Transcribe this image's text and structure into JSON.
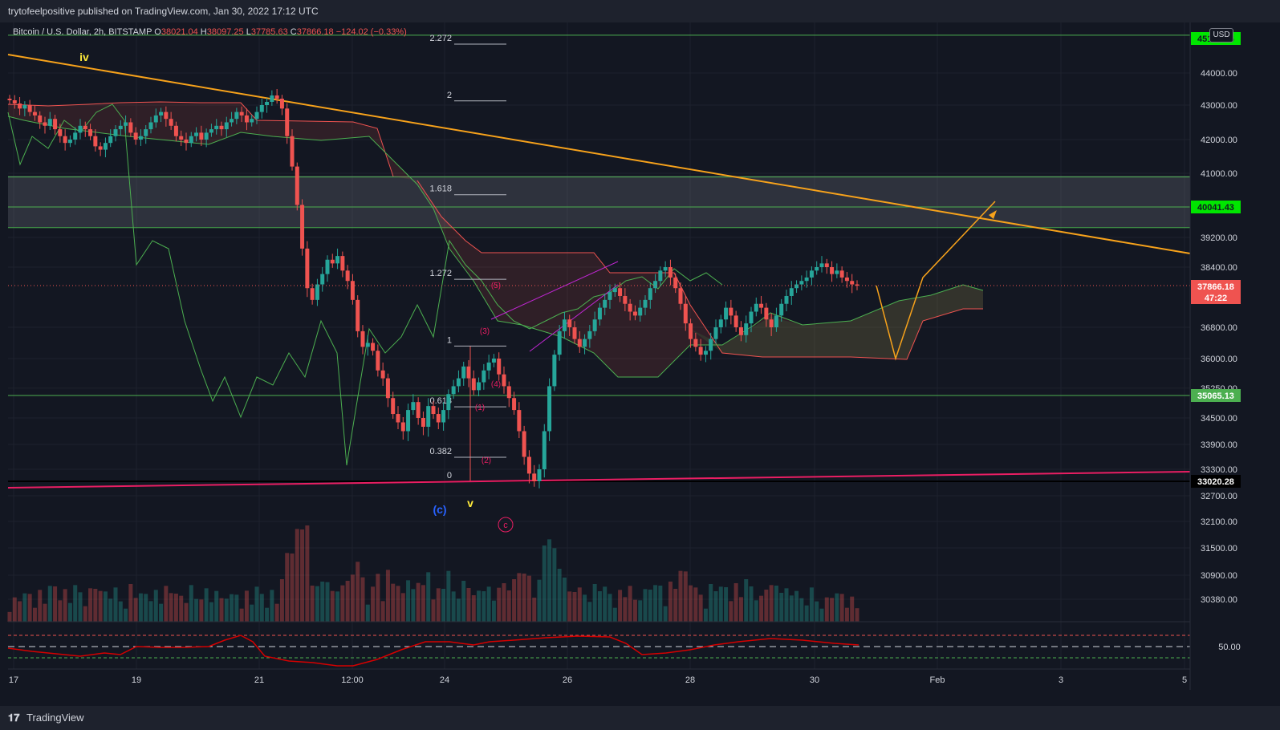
{
  "header": {
    "published_text": "trytofeelpositive published on TradingView.com, Jan 30, 2022 17:12 UTC"
  },
  "legend": {
    "symbol": "Bitcoin / U.S. Dollar, 2h, BITSTAMP",
    "open_label": "O",
    "open": "38021.04",
    "high_label": "H",
    "high": "38097.25",
    "low_label": "L",
    "low": "37785.63",
    "close_label": "C",
    "close": "37866.18",
    "change": "−124.02 (−0.33%)"
  },
  "currency_badge": "USD",
  "footer": {
    "logo": "𝟏𝟕",
    "brand": "TradingView"
  },
  "chart_data": {
    "type": "candlestick",
    "y_axis_ticks": [
      "44000.00",
      "43000.00",
      "42000.00",
      "41000.00",
      "39200.00",
      "38400.00",
      "36800.00",
      "36000.00",
      "35250.00",
      "34500.00",
      "33900.00",
      "33300.00",
      "32700.00",
      "32100.00",
      "31500.00",
      "30900.00",
      "30380.00"
    ],
    "ylim": [
      30000,
      45600
    ],
    "x_axis_ticks": [
      "17",
      "19",
      "21",
      "12:00",
      "24",
      "26",
      "28",
      "30",
      "Feb",
      "3",
      "5"
    ],
    "price_badges": [
      {
        "value": "45176.96",
        "color": "#00e600",
        "text_color": "#131722"
      },
      {
        "value": "40041.43",
        "color": "#00e600",
        "text_color": "#131722"
      },
      {
        "value": "37866.18",
        "color": "#ef5350",
        "text_color": "#ffffff"
      },
      {
        "value": "47:22",
        "color": "#ef5350",
        "text_color": "#ffffff"
      },
      {
        "value": "35065.13",
        "color": "#4caf50",
        "text_color": "#ffffff"
      },
      {
        "value": "33020.28",
        "color": "#000000",
        "text_color": "#ffffff"
      }
    ],
    "horizontal_levels": [
      45176.96,
      40894,
      40041.43,
      39470,
      35065.13,
      33020.28
    ],
    "current_price": 37866.18,
    "fib_levels": [
      {
        "label": "2.272",
        "value": 44900
      },
      {
        "label": "2",
        "value": 43130
      },
      {
        "label": "1.618",
        "value": 40390
      },
      {
        "label": "1.272",
        "value": 38050
      },
      {
        "label": "1",
        "value": 36320
      },
      {
        "label": "0.618",
        "value": 34780
      },
      {
        "label": "0.382",
        "value": 33590
      },
      {
        "label": "0",
        "value": 33020
      }
    ],
    "wave_labels": [
      {
        "text": "iv",
        "color": "#ffeb3b"
      },
      {
        "text": "v",
        "color": "#ffeb3b"
      },
      {
        "text": "(c)",
        "color": "#2962ff"
      },
      {
        "text": "c",
        "color": "#e91e63"
      },
      {
        "text": "(1)",
        "color": "#e91e63"
      },
      {
        "text": "(2)",
        "color": "#e91e63"
      },
      {
        "text": "(3)",
        "color": "#e91e63"
      },
      {
        "text": "(4)",
        "color": "#e91e63"
      },
      {
        "text": "(5)",
        "color": "#e91e63"
      }
    ],
    "candles": [
      43150,
      43050,
      42900,
      43000,
      42800,
      42700,
      42500,
      42400,
      42600,
      42300,
      42100,
      41900,
      42000,
      42200,
      42400,
      42300,
      42100,
      41800,
      41700,
      41900,
      42100,
      42300,
      42400,
      42500,
      42200,
      42000,
      42100,
      42300,
      42500,
      42700,
      42800,
      42600,
      42400,
      42100,
      42000,
      41900,
      42100,
      42200,
      42000,
      42200,
      42300,
      42400,
      42300,
      42500,
      42600,
      42800,
      42700,
      42500,
      42600,
      42800,
      43000,
      43100,
      43300,
      43200,
      42900,
      42100,
      41200,
      40100,
      38900,
      37800,
      37500,
      37900,
      38200,
      38600,
      38500,
      38700,
      38300,
      38000,
      37500,
      36700,
      36300,
      36400,
      36200,
      35700,
      35500,
      35000,
      34600,
      34400,
      34200,
      34700,
      34900,
      34500,
      34300,
      34800,
      34600,
      34400,
      34700,
      35100,
      35300,
      35500,
      35800,
      35500,
      35200,
      35400,
      35700,
      35900,
      36000,
      35600,
      35300,
      35000,
      34700,
      34200,
      33600,
      33200,
      33020,
      33300,
      34200,
      35300,
      36100,
      36700,
      37000,
      36800,
      36500,
      36300,
      36500,
      36700,
      37000,
      37300,
      37500,
      37700,
      37800,
      37600,
      37400,
      37200,
      37100,
      37300,
      37500,
      37800,
      38000,
      38300,
      38400,
      38100,
      37800,
      37400,
      36900,
      36500,
      36300,
      36100,
      36200,
      36500,
      36800,
      37000,
      37300,
      37100,
      36800,
      36600,
      36900,
      37200,
      37400,
      37300,
      37000,
      36800,
      37100,
      37400,
      37600,
      37800,
      37900,
      38000,
      38100,
      38300,
      38400,
      38500,
      38400,
      38200,
      38300,
      38100,
      38000,
      37900,
      37866
    ],
    "projection": [
      37866,
      36000,
      38100,
      40200
    ],
    "indicator": {
      "level_label": "50.00"
    }
  }
}
